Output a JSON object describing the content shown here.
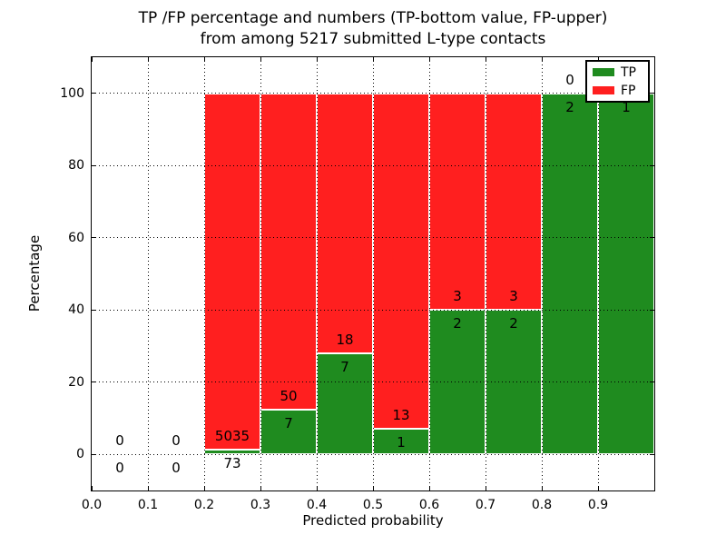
{
  "title": {
    "line1": "TP /FP percentage and numbers (TP-bottom value, FP-upper)",
    "line2": "from among 5217 submitted L-type contacts"
  },
  "axes": {
    "xlabel": "Predicted probability",
    "ylabel": "Percentage"
  },
  "legend": {
    "position": "upper-right",
    "items": [
      {
        "label": "TP",
        "color": "#1f8b1f"
      },
      {
        "label": "FP",
        "color": "#ff1f1f"
      }
    ]
  },
  "chart_data": {
    "type": "bar",
    "stacked": true,
    "title": "TP /FP percentage and numbers (TP-bottom value, FP-upper) from among 5217 submitted L-type contacts",
    "xlabel": "Predicted probability",
    "ylabel": "Percentage",
    "total_contacts": 5217,
    "bin_edges": [
      0.0,
      0.1,
      0.2,
      0.3,
      0.4,
      0.5,
      0.6,
      0.7,
      0.8,
      0.9,
      1.0
    ],
    "categories": [
      "0.0-0.1",
      "0.1-0.2",
      "0.2-0.3",
      "0.3-0.4",
      "0.4-0.5",
      "0.5-0.6",
      "0.6-0.7",
      "0.7-0.8",
      "0.8-0.9",
      "0.9-1.0"
    ],
    "series": [
      {
        "name": "TP",
        "color": "#1f8b1f",
        "counts": [
          0,
          0,
          73,
          7,
          7,
          1,
          2,
          2,
          2,
          1
        ]
      },
      {
        "name": "FP",
        "color": "#ff1f1f",
        "counts": [
          0,
          0,
          5035,
          50,
          18,
          13,
          3,
          3,
          0,
          0
        ]
      }
    ],
    "tp_percent": [
      0,
      0,
      1.43,
      12.28,
      28.0,
      7.14,
      40.0,
      40.0,
      100.0,
      100.0
    ],
    "x_ticks": [
      "0.0",
      "0.1",
      "0.2",
      "0.3",
      "0.4",
      "0.5",
      "0.6",
      "0.7",
      "0.8",
      "0.9"
    ],
    "y_ticks": [
      0,
      20,
      40,
      60,
      80,
      100
    ],
    "xlim": [
      0.0,
      1.0
    ],
    "ylim": [
      -10,
      110
    ],
    "grid": true,
    "bar_edge_color": "#ffffff"
  }
}
